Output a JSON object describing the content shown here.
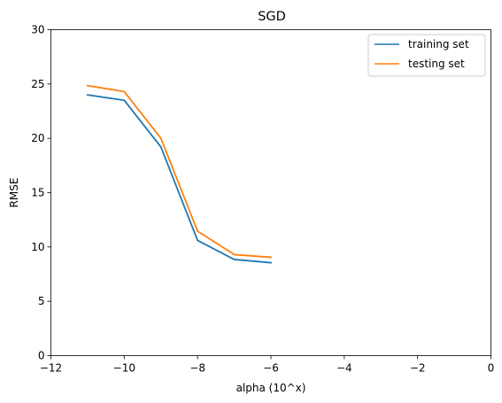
{
  "chart_data": {
    "type": "line",
    "title": "SGD",
    "xlabel": "alpha (10^x)",
    "ylabel": "RMSE",
    "xlim": [
      -12,
      0
    ],
    "ylim": [
      0,
      30
    ],
    "xticks": [
      -12,
      -10,
      -8,
      -6,
      -4,
      -2,
      0
    ],
    "xtick_labels": [
      "−12",
      "−10",
      "−8",
      "−6",
      "−4",
      "−2",
      "0"
    ],
    "yticks": [
      0,
      5,
      10,
      15,
      20,
      25,
      30
    ],
    "ytick_labels": [
      "0",
      "5",
      "10",
      "15",
      "20",
      "25",
      "30"
    ],
    "grid": false,
    "legend_position": "top-right",
    "x": [
      -11,
      -10,
      -9,
      -8,
      -7,
      -6
    ],
    "series": [
      {
        "name": "training set",
        "color": "#1f77b4",
        "values": [
          24.0,
          23.5,
          19.2,
          10.6,
          8.85,
          8.55
        ]
      },
      {
        "name": "testing set",
        "color": "#ff7f0e",
        "values": [
          24.85,
          24.3,
          20.0,
          11.45,
          9.3,
          9.05
        ]
      }
    ]
  }
}
